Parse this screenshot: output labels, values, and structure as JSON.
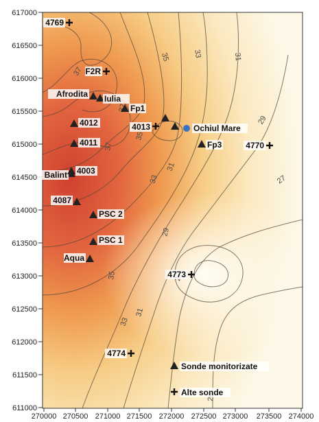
{
  "colors": {
    "hot": "#d0412f",
    "warm": "#ef9a4f",
    "mid": "#f7d08a",
    "cool": "#fdf8e8",
    "contour": "#5a4a3a",
    "well": "#222222",
    "special": "#3b73c4"
  },
  "map": {
    "x_ticks": [
      "270000",
      "270500",
      "271000",
      "271500",
      "272000",
      "272500",
      "273000",
      "273500",
      "274000"
    ],
    "y_ticks": [
      "611000",
      "611500",
      "612000",
      "612500",
      "613000",
      "613500",
      "614000",
      "614500",
      "615000",
      "615500",
      "616000",
      "616500",
      "617000"
    ],
    "contour_labels": [
      "37",
      "35",
      "33",
      "31",
      "37",
      "37",
      "35",
      "33",
      "31",
      "29",
      "27",
      "35",
      "33",
      "31",
      "29",
      "27",
      "29"
    ],
    "wells": [
      {
        "label": "Afrodita",
        "symbol": "triangle"
      },
      {
        "label": "Iulia",
        "symbol": "triangle"
      },
      {
        "label": "Fp1",
        "symbol": "triangle"
      },
      {
        "label": "4012",
        "symbol": "triangle"
      },
      {
        "label": "4011",
        "symbol": "triangle"
      },
      {
        "label": "Balint",
        "symbol": "triangle"
      },
      {
        "label": "4003",
        "symbol": "triangle"
      },
      {
        "label": "4087",
        "symbol": "triangle"
      },
      {
        "label": "PSC 2",
        "symbol": "triangle"
      },
      {
        "label": "PSC 1",
        "symbol": "triangle"
      },
      {
        "label": "Aqua",
        "symbol": "triangle"
      },
      {
        "label": "Fp3",
        "symbol": "triangle"
      },
      {
        "label": "Ochiul Mare",
        "symbol": "dot"
      },
      {
        "label": "4769",
        "symbol": "cross"
      },
      {
        "label": "F2R",
        "symbol": "cross"
      },
      {
        "label": "4013",
        "symbol": "cross"
      },
      {
        "label": "4770",
        "symbol": "cross"
      },
      {
        "label": "4773",
        "symbol": "cross"
      },
      {
        "label": "4774",
        "symbol": "cross"
      }
    ],
    "legend": [
      {
        "label": "Sonde monitorizate",
        "symbol": "triangle"
      },
      {
        "label": "Alte sonde",
        "symbol": "cross"
      }
    ]
  }
}
